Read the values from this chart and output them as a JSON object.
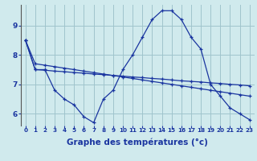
{
  "background_color": "#d0eaed",
  "grid_color": "#a0c4cc",
  "line_color": "#1a35a0",
  "xlabel": "Graphe des températures (°c)",
  "xlabel_fontsize": 7.5,
  "ylim": [
    5.6,
    9.7
  ],
  "yticks": [
    6,
    7,
    8,
    9
  ],
  "xlim": [
    -0.5,
    23.5
  ],
  "xticks": [
    0,
    1,
    2,
    3,
    4,
    5,
    6,
    7,
    8,
    9,
    10,
    11,
    12,
    13,
    14,
    15,
    16,
    17,
    18,
    19,
    20,
    21,
    22,
    23
  ],
  "curve1_x": [
    0,
    1,
    2,
    3,
    4,
    5,
    6,
    7,
    8,
    9,
    10,
    11,
    12,
    13,
    14,
    15,
    16,
    17,
    18,
    19,
    20,
    21,
    22,
    23
  ],
  "curve1_y": [
    8.5,
    7.7,
    7.65,
    7.6,
    7.55,
    7.5,
    7.45,
    7.4,
    7.35,
    7.3,
    7.25,
    7.2,
    7.15,
    7.1,
    7.05,
    7.0,
    6.95,
    6.9,
    6.85,
    6.8,
    6.75,
    6.7,
    6.65,
    6.6
  ],
  "curve2_x": [
    0,
    1,
    2,
    3,
    4,
    5,
    6,
    7,
    8,
    9,
    10,
    11,
    12,
    13,
    14,
    15,
    16,
    17,
    18,
    19,
    20,
    21,
    22,
    23
  ],
  "curve2_y": [
    8.5,
    7.5,
    7.48,
    7.45,
    7.43,
    7.4,
    7.38,
    7.35,
    7.33,
    7.3,
    7.28,
    7.25,
    7.23,
    7.2,
    7.18,
    7.15,
    7.12,
    7.1,
    7.08,
    7.05,
    7.03,
    7.0,
    6.98,
    6.95
  ],
  "curve3_x": [
    0,
    1,
    2,
    3,
    4,
    5,
    6,
    7,
    8,
    9,
    10,
    11,
    12,
    13,
    14,
    15,
    16,
    17,
    18,
    19,
    20,
    21,
    22,
    23
  ],
  "curve3_y": [
    8.5,
    7.5,
    7.5,
    6.8,
    6.5,
    6.3,
    5.9,
    5.7,
    6.5,
    6.8,
    7.5,
    8.0,
    8.6,
    9.2,
    9.5,
    9.5,
    9.2,
    8.6,
    8.2,
    7.0,
    6.6,
    6.2,
    6.0,
    5.8
  ]
}
